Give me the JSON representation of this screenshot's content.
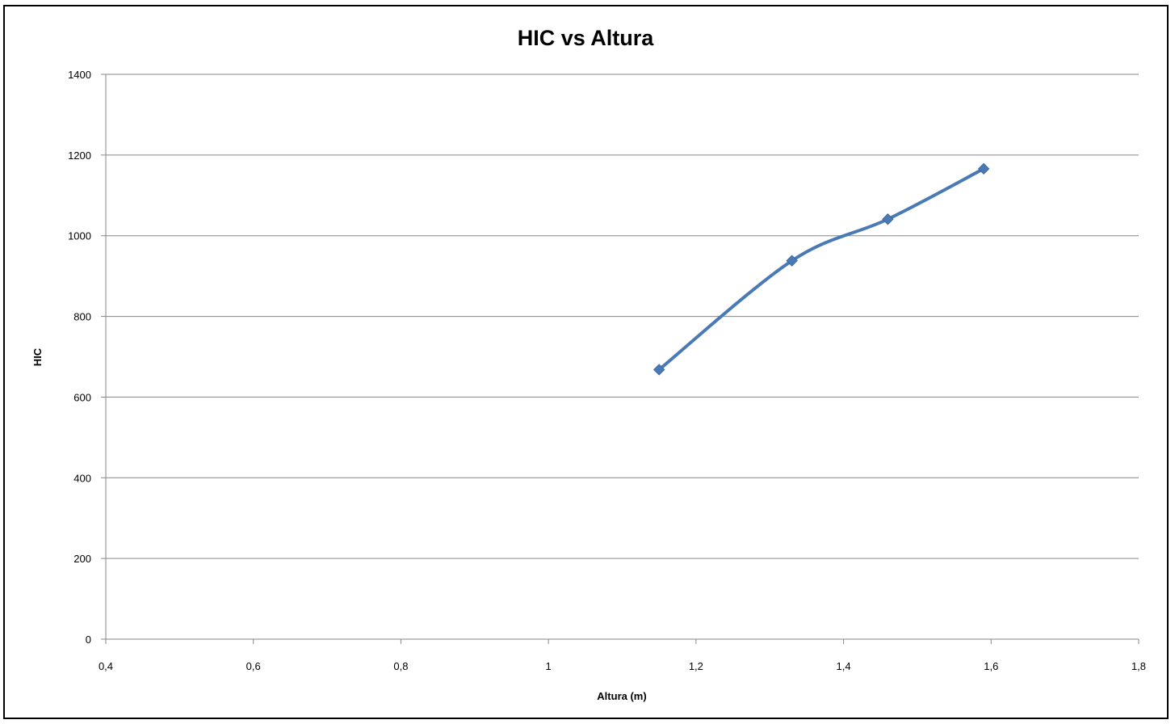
{
  "chart_data": {
    "type": "line",
    "title": "HIC vs Altura",
    "xlabel": "Altura (m)",
    "ylabel": "HIC",
    "xlim": [
      0.4,
      1.8
    ],
    "ylim": [
      0,
      1400
    ],
    "x_ticks": [
      "0,4",
      "0,6",
      "0,8",
      "1",
      "1,2",
      "1,4",
      "1,6",
      "1,8"
    ],
    "y_ticks": [
      "0",
      "200",
      "400",
      "600",
      "800",
      "1000",
      "1200",
      "1400"
    ],
    "grid": "horizontal",
    "legend": "none",
    "smooth": true,
    "marker": "diamond",
    "series": [
      {
        "color": "#4a7ab5",
        "x": [
          1.15,
          1.33,
          1.46,
          1.59
        ],
        "y": [
          668,
          938,
          1041,
          1166
        ]
      }
    ]
  }
}
